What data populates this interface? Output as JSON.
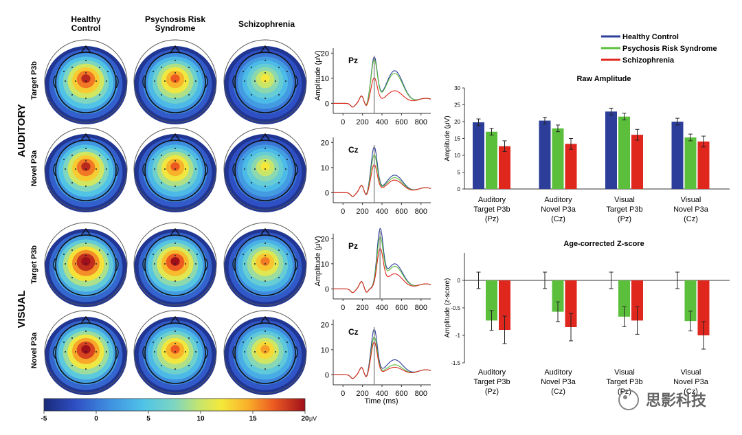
{
  "columns": [
    "Healthy\nControl",
    "Psychosis Risk\nSyndrome",
    "Schizophrenia"
  ],
  "modalities": [
    "AUDITORY",
    "VISUAL"
  ],
  "rows": [
    "Target P3b",
    "Novel P3a",
    "Target P3b",
    "Novel P3a"
  ],
  "topo_peak_uv": [
    [
      19,
      17,
      12
    ],
    [
      19,
      17,
      12
    ],
    [
      22,
      20,
      16
    ],
    [
      21,
      17,
      15
    ]
  ],
  "colorbar": {
    "ticks": [
      "-5",
      "0",
      "5",
      "10",
      "15",
      "20"
    ],
    "unit": "μV",
    "range": [
      -5,
      20
    ]
  },
  "colors": {
    "healthy": "#2c3e9a",
    "risk": "#5cbf3c",
    "schizo": "#e0271e"
  },
  "erp": {
    "ylabel": "Amplitude (μV)",
    "xlabel": "Time (ms)",
    "xticks": [
      "0",
      "200",
      "400",
      "600",
      "800"
    ],
    "yticks": [
      "0",
      "10",
      "20"
    ],
    "panels": [
      {
        "electrode": "Pz",
        "marker_ms": 320,
        "peaks": [
          18,
          17,
          10
        ],
        "late": [
          13,
          12,
          5
        ]
      },
      {
        "electrode": "Cz",
        "marker_ms": 320,
        "peaks": [
          18,
          15,
          11
        ],
        "late": [
          7,
          6,
          5
        ]
      },
      {
        "electrode": "Pz",
        "marker_ms": 380,
        "peaks": [
          22,
          19,
          15
        ],
        "late": [
          10,
          9,
          6
        ]
      },
      {
        "electrode": "Cz",
        "marker_ms": 320,
        "peaks": [
          18,
          15,
          13
        ],
        "late": [
          6,
          4,
          3
        ]
      }
    ]
  },
  "legend": [
    "Healthy Control",
    "Psychosis Risk Syndrome",
    "Schizophrenia"
  ],
  "chart_data": [
    {
      "type": "bar",
      "title": "Raw Amplitude",
      "ylabel": "Amplitude (μV)",
      "ylim": [
        0,
        30
      ],
      "yticks": [
        "0",
        "5",
        "10",
        "15",
        "20",
        "25",
        "30"
      ],
      "categories": [
        "Auditory\nTarget P3b\n(Pz)",
        "Auditory\nNovel P3a\n(Cz)",
        "Visual\nTarget P3b\n(Pz)",
        "Visual\nNovel P3a\n(Cz)"
      ],
      "series": [
        {
          "name": "Healthy Control",
          "values": [
            19.8,
            20.3,
            23.0,
            20.0
          ],
          "errors": [
            1.0,
            1.0,
            1.0,
            1.0
          ]
        },
        {
          "name": "Psychosis Risk Syndrome",
          "values": [
            17.0,
            18.0,
            21.5,
            15.3
          ],
          "errors": [
            1.0,
            1.0,
            1.0,
            1.0
          ]
        },
        {
          "name": "Schizophrenia",
          "values": [
            12.7,
            13.4,
            16.1,
            14.1
          ],
          "errors": [
            1.6,
            1.6,
            1.6,
            1.6
          ]
        }
      ],
      "legend_position": "top-right",
      "grid": false
    },
    {
      "type": "bar",
      "title": "Age-corrected Z-score",
      "ylabel": "Amplitude (z-score)",
      "ylim": [
        -1.5,
        0.5
      ],
      "yticks": [
        "0",
        "-0.5",
        "-1",
        "-1.5"
      ],
      "categories": [
        "Auditory\nTarget P3b\n(Pz)",
        "Auditory\nNovel P3a\n(Cz)",
        "Visual\nTarget P3b\n(Pz)",
        "Visual\nNovel P3a\n(Cz)"
      ],
      "series": [
        {
          "name": "Healthy Control",
          "values": [
            0,
            0,
            0,
            0
          ],
          "errors": [
            0.15,
            0.15,
            0.15,
            0.15
          ]
        },
        {
          "name": "Psychosis Risk Syndrome",
          "values": [
            -0.73,
            -0.57,
            -0.66,
            -0.74
          ],
          "errors": [
            0.18,
            0.18,
            0.18,
            0.18
          ]
        },
        {
          "name": "Schizophrenia",
          "values": [
            -0.9,
            -0.85,
            -0.73,
            -1.0
          ],
          "errors": [
            0.25,
            0.25,
            0.25,
            0.25
          ]
        }
      ],
      "grid": false
    }
  ],
  "watermark": "思影科技"
}
